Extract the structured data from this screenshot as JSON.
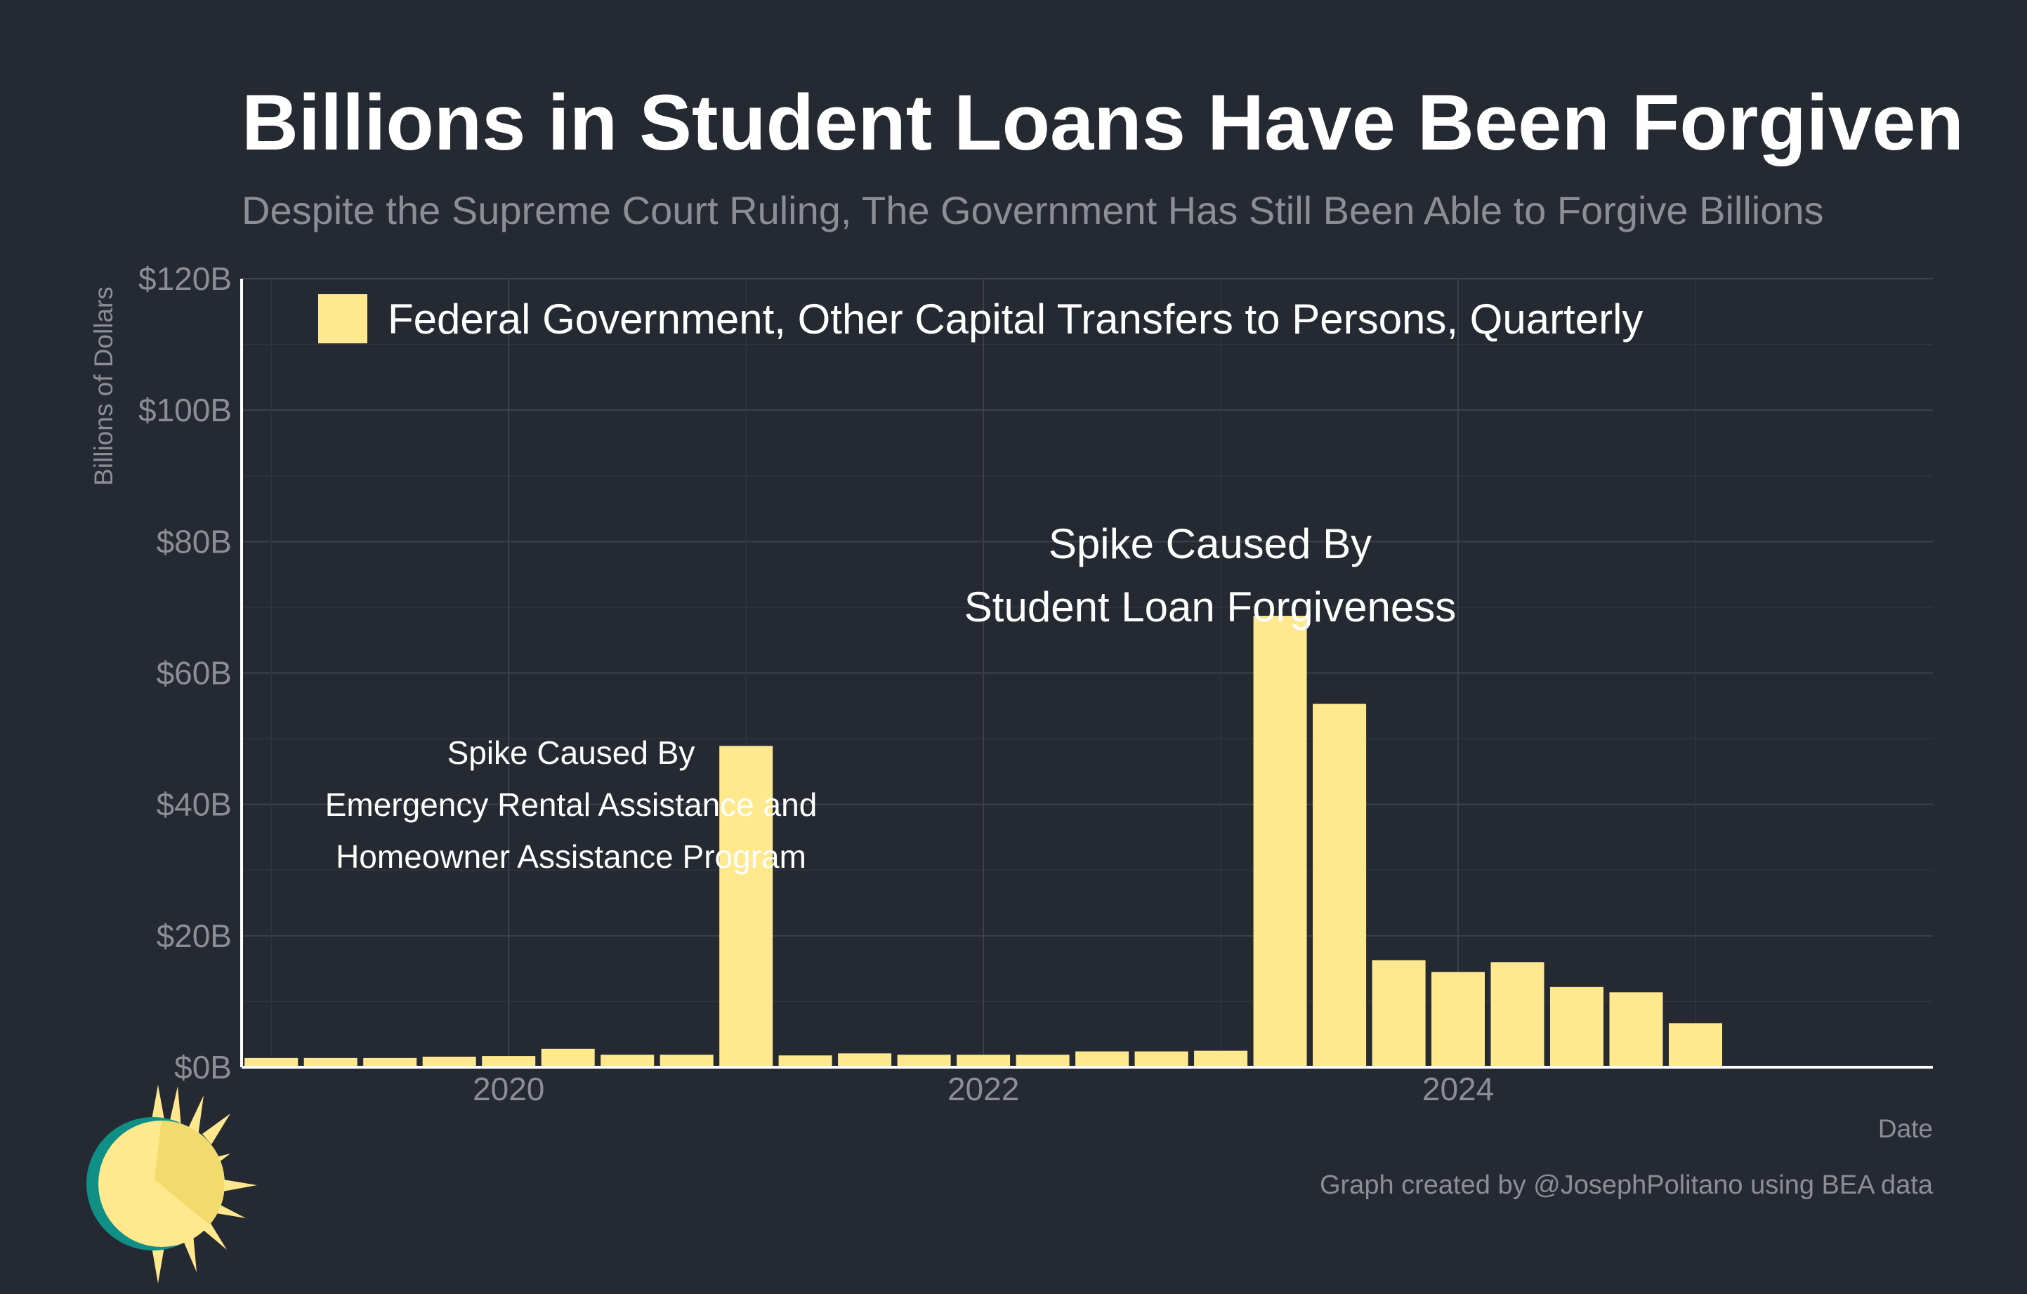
{
  "chart_data": {
    "type": "bar",
    "title": "Billions in Student Loans Have Been Forgiven",
    "subtitle": "Despite the Supreme Court Ruling, The Government Has Still Been Able to Forgive Billions",
    "ylabel": "Billions of Dollars",
    "xlabel": "Date",
    "ylim": [
      0,
      120
    ],
    "y_ticks": [
      0,
      20,
      40,
      60,
      80,
      100,
      120
    ],
    "y_tick_labels": [
      "$0B",
      "$20B",
      "$40B",
      "$60B",
      "$80B",
      "$100B",
      "$120B"
    ],
    "x_ticks": [
      2020,
      2022,
      2024
    ],
    "x_tick_labels": [
      "2020",
      "2022",
      "2024"
    ],
    "xlim": [
      2018.875,
      2026.0
    ],
    "grid": true,
    "legend_position": "top-left",
    "bar_color": "#FFE88E",
    "series": [
      {
        "name": "Federal Government, Other Capital Transfers to Persons, Quarterly",
        "x": [
          "2019-01",
          "2019-04",
          "2019-07",
          "2019-10",
          "2020-01",
          "2020-04",
          "2020-07",
          "2020-10",
          "2021-01",
          "2021-04",
          "2021-07",
          "2021-10",
          "2022-01",
          "2022-04",
          "2022-07",
          "2022-10",
          "2023-01",
          "2023-04",
          "2023-07",
          "2023-10",
          "2024-01",
          "2024-04",
          "2024-07",
          "2024-10",
          "2025-01"
        ],
        "values": [
          1.4,
          1.4,
          1.4,
          1.6,
          1.7,
          2.8,
          1.9,
          1.9,
          48.9,
          1.8,
          2.1,
          1.9,
          1.9,
          1.9,
          2.4,
          2.4,
          2.5,
          68.7,
          55.3,
          16.3,
          14.5,
          16.0,
          12.2,
          11.4,
          6.7
        ]
      }
    ],
    "annotations": [
      {
        "lines": [
          "Spike Caused By",
          "Student Loan Forgiveness"
        ]
      },
      {
        "lines": [
          "Spike Caused By",
          "Emergency Rental Assistance and",
          "Homeowner Assistance Program"
        ]
      }
    ],
    "caption": "Graph created by @JosephPolitano using BEA data"
  },
  "colors": {
    "background": "#252932",
    "grid": "#3d414a",
    "axis": "#ffffff",
    "muted_text": "#8b8e95",
    "logo_teal": "#0f8f86",
    "logo_yellow": "#FFE88E"
  },
  "logo": {
    "icon": "sun-icon"
  }
}
